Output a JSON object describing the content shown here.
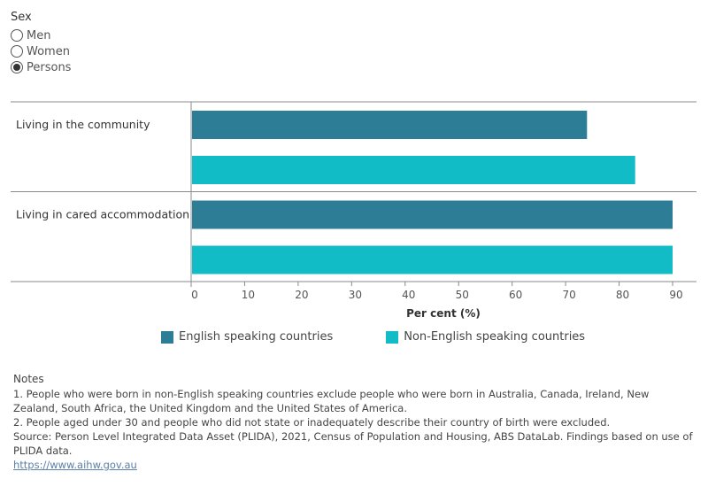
{
  "filter": {
    "title": "Sex",
    "options": [
      {
        "label": "Men",
        "checked": false
      },
      {
        "label": "Women",
        "checked": false
      },
      {
        "label": "Persons",
        "checked": true
      }
    ]
  },
  "chart_data": {
    "type": "bar",
    "orientation": "horizontal",
    "categories": [
      "Living in the community",
      "Living in cared accommodation"
    ],
    "series": [
      {
        "name": "English speaking countries",
        "color": "#2e7d96",
        "values": [
          74,
          90
        ]
      },
      {
        "name": "Non-English speaking countries",
        "color": "#12bcc6",
        "values": [
          83,
          90
        ]
      }
    ],
    "xlabel": "Per cent (%)",
    "xlim": [
      0,
      90
    ],
    "xticks": [
      0,
      10,
      20,
      30,
      40,
      50,
      60,
      70,
      80,
      90
    ],
    "grid": false,
    "legend_position": "bottom"
  },
  "notes": {
    "title": "Notes",
    "lines": [
      "1. People who were born in non-English speaking countries exclude people who were born in Australia, Canada, Ireland, New Zealand, South Africa, the United Kingdom and the United States of America.",
      "2. People aged under 30 and people who did not state or inadequately describe their country of birth were excluded.",
      "Source: Person Level Integrated Data Asset (PLIDA), 2021, Census of Population and Housing, ABS DataLab. Findings based on use of PLIDA data."
    ],
    "link": "https://www.aihw.gov.au"
  }
}
